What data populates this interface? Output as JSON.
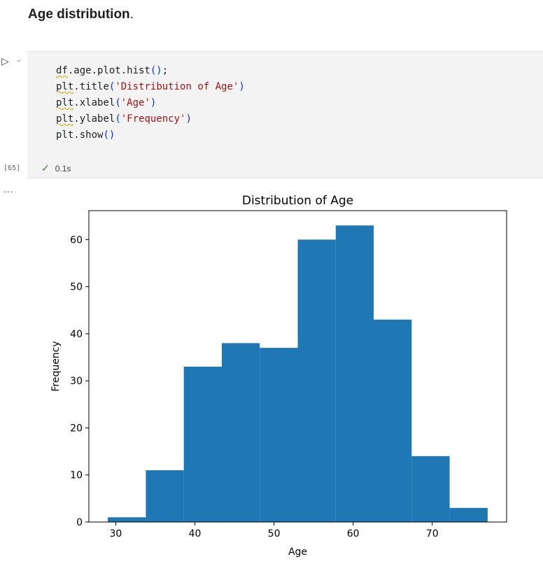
{
  "markdown": {
    "heading": "Age distribution",
    "heading_suffix": "."
  },
  "cell": {
    "run_icon": "play-icon",
    "chevron_icon": "chevron-down-icon",
    "execution_count": "[65]",
    "status_icon": "check-icon",
    "status_mark": "✓",
    "duration": "0.1s",
    "output_more": "...",
    "code_lines": [
      [
        {
          "t": "df",
          "sq": true
        },
        {
          "t": ".age.plot.hist"
        },
        {
          "t": "()",
          "c": "par"
        },
        {
          "t": ";"
        }
      ],
      [
        {
          "t": "plt",
          "sq": true
        },
        {
          "t": ".title"
        },
        {
          "t": "(",
          "c": "par"
        },
        {
          "t": "'Distribution of Age'",
          "c": "str"
        },
        {
          "t": ")",
          "c": "par"
        }
      ],
      [
        {
          "t": "plt",
          "sq": true
        },
        {
          "t": ".xlabel"
        },
        {
          "t": "(",
          "c": "par"
        },
        {
          "t": "'Age'",
          "c": "str"
        },
        {
          "t": ")",
          "c": "par"
        }
      ],
      [
        {
          "t": "plt",
          "sq": true
        },
        {
          "t": ".ylabel"
        },
        {
          "t": "(",
          "c": "par"
        },
        {
          "t": "'Frequency'",
          "c": "str"
        },
        {
          "t": ")",
          "c": "par"
        }
      ],
      [
        {
          "t": "plt"
        },
        {
          "t": ".show"
        },
        {
          "t": "()",
          "c": "par"
        }
      ]
    ]
  },
  "colors": {
    "bar": "#1f77b4",
    "check": "#388a34",
    "string": "#a31515",
    "paren": "#0431fa"
  },
  "chart_data": {
    "type": "bar",
    "title": "Distribution of Age",
    "xlabel": "Age",
    "ylabel": "Frequency",
    "bin_edges": [
      29,
      33.8,
      38.6,
      43.4,
      48.2,
      53,
      57.8,
      62.6,
      67.4,
      72.2,
      77
    ],
    "values": [
      1,
      11,
      33,
      38,
      37,
      60,
      63,
      43,
      14,
      3
    ],
    "xlim": [
      26.6,
      79.4
    ],
    "ylim": [
      0,
      66.15
    ],
    "xticks": [
      30,
      40,
      50,
      60,
      70
    ],
    "yticks": [
      0,
      10,
      20,
      30,
      40,
      50,
      60
    ],
    "grid": false
  }
}
